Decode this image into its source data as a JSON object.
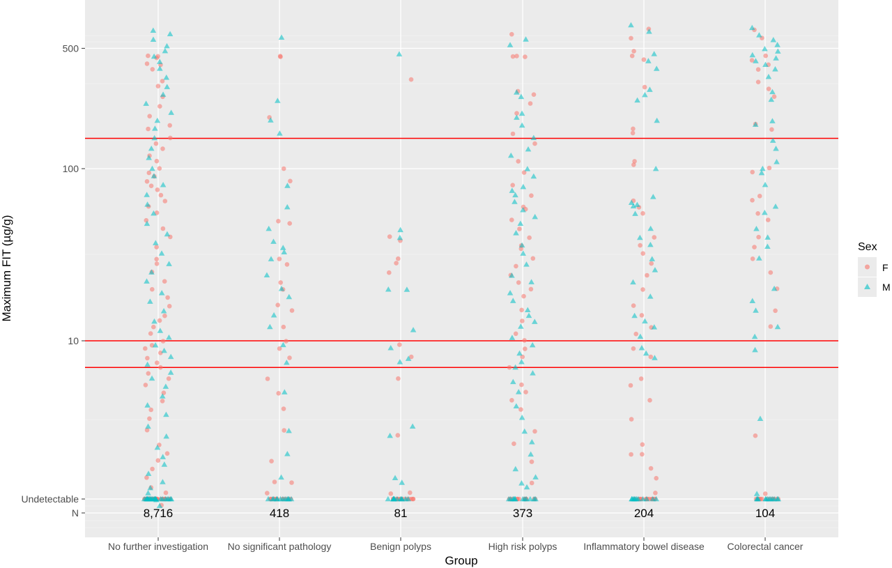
{
  "chart_data": {
    "type": "scatter",
    "title": "",
    "xlabel": "Group",
    "ylabel": "Maximum FIT (µg/g)",
    "y_scale": "log",
    "y_ticks": [
      "Undetectable",
      "10",
      "100",
      "500"
    ],
    "row_label": "N",
    "categories": [
      "No further investigation",
      "No significant pathology",
      "Benign polyps",
      "High risk polyps",
      "Inflammatory bowel disease",
      "Colorectal cancer"
    ],
    "counts": [
      "8,716",
      "418",
      "81",
      "373",
      "204",
      "104"
    ],
    "reference_lines": [
      150,
      10,
      7
    ],
    "reference_line_color": "#ff0000",
    "legend": {
      "title": "Sex",
      "position": "right",
      "entries": [
        {
          "label": "F",
          "shape": "circle",
          "color": "#f8766d"
        },
        {
          "label": "M",
          "shape": "triangle",
          "color": "#00bfc4"
        }
      ]
    },
    "series": [
      {
        "name": "F",
        "shape": "circle",
        "color": "#f8766d",
        "points": {
          "No further investigation": [
            450,
            450,
            440,
            410,
            400,
            380,
            320,
            300,
            260,
            230,
            200,
            180,
            170,
            150,
            140,
            130,
            120,
            110,
            100,
            95,
            90,
            85,
            80,
            75,
            70,
            65,
            60,
            55,
            50,
            45,
            40,
            35,
            30,
            28,
            25,
            22,
            20,
            18,
            16,
            14,
            13,
            12,
            11,
            10,
            9.5,
            9,
            8.5,
            8,
            7.5,
            7,
            6.5,
            6,
            5.5,
            5,
            4.5,
            4,
            3.5,
            3,
            2.5,
            2.2,
            2,
            1.8,
            1.6,
            1.4,
            1.3,
            1.2,
            1.1
          ],
          "No significant pathology": [
            450,
            450,
            200,
            100,
            85,
            50,
            48,
            30,
            28,
            22,
            20,
            16,
            15,
            12,
            10,
            9,
            8,
            6,
            5,
            4,
            3,
            2,
            1.5,
            1.5,
            1.3
          ],
          "Benign polyps": [
            330,
            40,
            38,
            30,
            28,
            25,
            9.5,
            8,
            6,
            2.8,
            1.3,
            1.3,
            1.2
          ],
          "High risk polyps": [
            600,
            450,
            450,
            450,
            280,
            270,
            240,
            210,
            160,
            140,
            110,
            95,
            80,
            70,
            60,
            58,
            50,
            45,
            40,
            36,
            34,
            30,
            27,
            24,
            22,
            20,
            18,
            15,
            13,
            11,
            10,
            9,
            8,
            7,
            5.5,
            5,
            4.5,
            4,
            3,
            2.5,
            2,
            1.5
          ],
          "Inflammatory bowel disease": [
            650,
            570,
            480,
            450,
            430,
            300,
            170,
            160,
            110,
            105,
            65,
            60,
            55,
            40,
            36,
            32,
            28,
            24,
            20,
            16,
            14,
            12,
            11,
            9,
            8,
            6,
            5.5,
            4.5,
            3.5,
            2.5,
            2.2,
            2.2,
            1.8,
            1.6,
            1.3,
            1.2
          ],
          "Colorectal cancer": [
            640,
            570,
            450,
            430,
            400,
            380,
            320,
            290,
            260,
            180,
            170,
            100,
            95,
            70,
            65,
            55,
            50,
            40,
            35,
            30,
            25,
            20,
            15,
            12,
            2.8,
            1.3
          ]
        }
      },
      {
        "name": "M",
        "shape": "triangle",
        "color": "#00bfc4",
        "points": {
          "No further investigation": [
            640,
            600,
            560,
            520,
            480,
            450,
            420,
            380,
            340,
            300,
            270,
            240,
            210,
            190,
            170,
            150,
            130,
            115,
            100,
            90,
            80,
            70,
            62,
            55,
            48,
            42,
            37,
            32,
            28,
            25,
            22,
            19,
            17,
            15,
            13,
            11.5,
            10.5,
            9.5,
            8.8,
            8,
            7.3,
            6.6,
            6,
            5.4,
            4.8,
            4.2,
            3.7,
            3.2,
            2.8,
            2.4,
            2.1,
            1.9,
            1.7,
            1.5,
            1.4,
            1.3,
            1.2,
            1.1
          ],
          "No significant pathology": [
            580,
            250,
            190,
            160,
            80,
            60,
            45,
            38,
            35,
            33,
            30,
            24,
            20,
            18,
            14,
            12,
            9.5,
            7.5,
            5,
            3,
            2.2,
            1.6
          ],
          "Benign polyps": [
            460,
            44,
            40,
            20,
            20,
            11.5,
            9,
            7.8,
            7.5,
            3.2,
            2.8,
            1.6,
            1.5
          ],
          "High risk polyps": [
            560,
            520,
            280,
            260,
            210,
            200,
            180,
            150,
            130,
            120,
            100,
            90,
            78,
            75,
            70,
            64,
            58,
            52,
            48,
            42,
            36,
            32,
            28,
            24,
            22,
            19,
            17,
            15,
            14,
            13,
            12,
            10.5,
            9.5,
            8.5,
            7.5,
            7,
            6.5,
            5.8,
            5,
            4.2,
            3.6,
            3,
            2.6,
            2.2,
            1.8,
            1.6,
            1.5,
            1.4
          ],
          "Inflammatory bowel disease": [
            680,
            620,
            460,
            420,
            380,
            290,
            270,
            250,
            190,
            100,
            68,
            64,
            62,
            60,
            55,
            45,
            40,
            36,
            30,
            26,
            22,
            18,
            14,
            13,
            12,
            10.5,
            9,
            8.5,
            8
          ],
          "Colorectal cancer": [
            660,
            600,
            560,
            520,
            500,
            480,
            460,
            440,
            420,
            400,
            380,
            340,
            280,
            250,
            190,
            180,
            145,
            130,
            110,
            100,
            95,
            80,
            60,
            55,
            45,
            40,
            35,
            30,
            20,
            17,
            15,
            12,
            10.5,
            8.8,
            3.5,
            1.3
          ]
        }
      }
    ]
  }
}
